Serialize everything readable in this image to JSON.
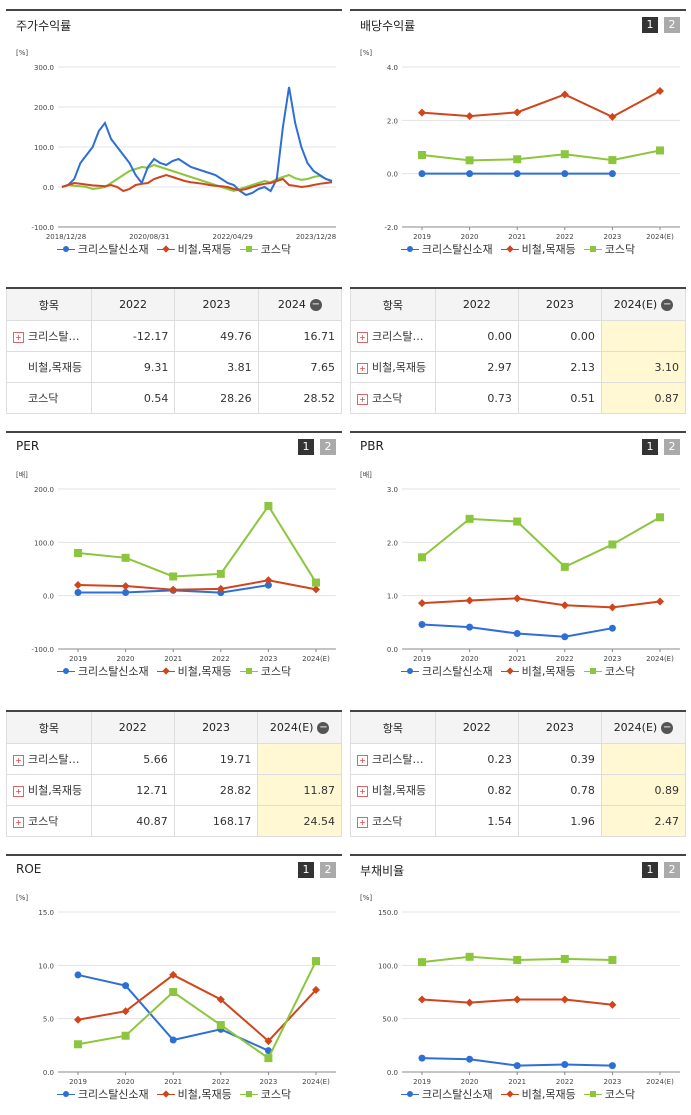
{
  "colors": {
    "s1": "#2e6fd6",
    "s2": "#d0451b",
    "s3": "#8cc63e"
  },
  "series_names": [
    "크리스탈신소재",
    "비철,목재등",
    "코스닥"
  ],
  "pager": [
    "1",
    "2"
  ],
  "stock": {
    "title": "주가수익률",
    "unit": "[%]",
    "chart_data": {
      "type": "line",
      "ylim": [
        -100,
        300
      ],
      "yticks": [
        "300.0",
        "200.0",
        "100.0",
        "0.0",
        "-100.0"
      ],
      "xticks": [
        "2018/12/28",
        "2020/08/31",
        "2022/04/29",
        "2023/12/28"
      ],
      "series": [
        {
          "name": "크리스탈신소재",
          "values": [
            0,
            5,
            20,
            60,
            80,
            100,
            140,
            160,
            120,
            100,
            80,
            60,
            30,
            10,
            50,
            70,
            60,
            55,
            65,
            70,
            60,
            50,
            45,
            40,
            35,
            30,
            20,
            10,
            5,
            -10,
            -20,
            -15,
            -5,
            0,
            -10,
            20,
            150,
            250,
            160,
            100,
            60,
            40,
            30,
            20,
            15
          ]
        },
        {
          "name": "비철,목재등",
          "values": [
            0,
            5,
            10,
            8,
            6,
            4,
            3,
            2,
            5,
            0,
            -10,
            -5,
            5,
            8,
            10,
            20,
            25,
            30,
            25,
            20,
            15,
            12,
            10,
            8,
            5,
            3,
            2,
            0,
            -5,
            -8,
            -5,
            0,
            5,
            8,
            10,
            15,
            20,
            5,
            3,
            0,
            2,
            5,
            8,
            10,
            12
          ]
        },
        {
          "name": "코스닥",
          "values": [
            0,
            5,
            3,
            2,
            0,
            -5,
            -3,
            0,
            10,
            20,
            30,
            40,
            45,
            50,
            48,
            55,
            50,
            45,
            40,
            35,
            30,
            25,
            20,
            15,
            10,
            5,
            0,
            -5,
            -10,
            -5,
            0,
            5,
            10,
            15,
            12,
            20,
            25,
            30,
            22,
            18,
            20,
            25,
            28,
            20,
            15
          ]
        }
      ]
    }
  },
  "stock_table": {
    "headers": [
      "항목",
      "2022",
      "2023",
      "2024"
    ],
    "rows": [
      {
        "label": "크리스탈…",
        "values": [
          "-12.17",
          "49.76",
          "16.71"
        ],
        "plus": true
      },
      {
        "label": "비철,목재등",
        "values": [
          "9.31",
          "3.81",
          "7.65"
        ],
        "plus": false
      },
      {
        "label": "코스닥",
        "values": [
          "0.54",
          "28.26",
          "28.52"
        ],
        "plus": false
      }
    ]
  },
  "dividend": {
    "title": "배당수익률",
    "unit": "[%]",
    "chart_data": {
      "type": "line",
      "ylim": [
        -2,
        4
      ],
      "yticks": [
        "4.0",
        "2.0",
        "0.0",
        "-2.0"
      ],
      "categories": [
        "2019",
        "2020",
        "2021",
        "2022",
        "2023",
        "2024(E)"
      ],
      "series": [
        {
          "name": "크리스탈신소재",
          "values": [
            0,
            0,
            0,
            0,
            0,
            null
          ]
        },
        {
          "name": "비철,목재등",
          "values": [
            2.29,
            2.16,
            2.3,
            2.97,
            2.13,
            3.1
          ]
        },
        {
          "name": "코스닥",
          "values": [
            0.7,
            0.5,
            0.54,
            0.73,
            0.51,
            0.87
          ]
        }
      ]
    }
  },
  "dividend_table": {
    "headers": [
      "항목",
      "2022",
      "2023",
      "2024(E)"
    ],
    "rows": [
      {
        "label": "크리스탈…",
        "values": [
          "0.00",
          "0.00",
          ""
        ],
        "plus": true
      },
      {
        "label": "비철,목재등",
        "values": [
          "2.97",
          "2.13",
          "3.10"
        ],
        "plus": true
      },
      {
        "label": "코스닥",
        "values": [
          "0.73",
          "0.51",
          "0.87"
        ],
        "plus": true
      }
    ]
  },
  "per": {
    "title": "PER",
    "unit": "[배]",
    "chart_data": {
      "type": "line",
      "ylim": [
        -100,
        200
      ],
      "yticks": [
        "200.0",
        "100.0",
        "0.0",
        "-100.0"
      ],
      "categories": [
        "2019",
        "2020",
        "2021",
        "2022",
        "2023",
        "2024(E)"
      ],
      "series": [
        {
          "name": "크리스탈신소재",
          "values": [
            6,
            6,
            10,
            5.66,
            19.71,
            null
          ]
        },
        {
          "name": "비철,목재등",
          "values": [
            20,
            18,
            11,
            12.71,
            28.82,
            11.87
          ]
        },
        {
          "name": "코스닥",
          "values": [
            80,
            71,
            36,
            40.87,
            168.17,
            24.54
          ]
        }
      ]
    }
  },
  "per_table": {
    "headers": [
      "항목",
      "2022",
      "2023",
      "2024(E)"
    ],
    "rows": [
      {
        "label": "크리스탈…",
        "values": [
          "5.66",
          "19.71",
          ""
        ],
        "plus": true
      },
      {
        "label": "비철,목재등",
        "values": [
          "12.71",
          "28.82",
          "11.87"
        ],
        "plus": true
      },
      {
        "label": "코스닥",
        "values": [
          "40.87",
          "168.17",
          "24.54"
        ],
        "plus": true
      }
    ]
  },
  "pbr": {
    "title": "PBR",
    "unit": "[배]",
    "chart_data": {
      "type": "line",
      "ylim": [
        0,
        3
      ],
      "yticks": [
        "3.0",
        "2.0",
        "1.0",
        "0.0"
      ],
      "categories": [
        "2019",
        "2020",
        "2021",
        "2022",
        "2023",
        "2024(E)"
      ],
      "series": [
        {
          "name": "크리스탈신소재",
          "values": [
            0.46,
            0.41,
            0.29,
            0.23,
            0.39,
            null
          ]
        },
        {
          "name": "비철,목재등",
          "values": [
            0.86,
            0.91,
            0.95,
            0.82,
            0.78,
            0.89
          ]
        },
        {
          "name": "코스닥",
          "values": [
            1.72,
            2.44,
            2.39,
            1.54,
            1.96,
            2.47
          ]
        }
      ]
    }
  },
  "pbr_table": {
    "headers": [
      "항목",
      "2022",
      "2023",
      "2024(E)"
    ],
    "rows": [
      {
        "label": "크리스탈…",
        "values": [
          "0.23",
          "0.39",
          ""
        ],
        "plus": true
      },
      {
        "label": "비철,목재등",
        "values": [
          "0.82",
          "0.78",
          "0.89"
        ],
        "plus": true
      },
      {
        "label": "코스닥",
        "values": [
          "1.54",
          "1.96",
          "2.47"
        ],
        "plus": true
      }
    ]
  },
  "roe": {
    "title": "ROE",
    "unit": "[%]",
    "chart_data": {
      "type": "line",
      "ylim": [
        0,
        15
      ],
      "yticks": [
        "15.0",
        "10.0",
        "5.0",
        "0.0"
      ],
      "categories": [
        "2019",
        "2020",
        "2021",
        "2022",
        "2023",
        "2024(E)"
      ],
      "series": [
        {
          "name": "크리스탈신소재",
          "values": [
            9.1,
            8.1,
            3.0,
            4.0,
            2.0,
            null
          ]
        },
        {
          "name": "비철,목재등",
          "values": [
            4.9,
            5.7,
            9.1,
            6.8,
            2.9,
            7.7
          ]
        },
        {
          "name": "코스닥",
          "values": [
            2.6,
            3.4,
            7.5,
            4.4,
            1.3,
            10.4
          ]
        }
      ]
    }
  },
  "debt": {
    "title": "부채비율",
    "unit": "[%]",
    "chart_data": {
      "type": "line",
      "ylim": [
        0,
        150
      ],
      "yticks": [
        "150.0",
        "100.0",
        "50.0",
        "0.0"
      ],
      "categories": [
        "2019",
        "2020",
        "2021",
        "2022",
        "2023",
        "2024(E)"
      ],
      "series": [
        {
          "name": "크리스탈신소재",
          "values": [
            13,
            12,
            6,
            7,
            6,
            null
          ]
        },
        {
          "name": "비철,목재등",
          "values": [
            68,
            65,
            68,
            68,
            63,
            null
          ]
        },
        {
          "name": "코스닥",
          "values": [
            103,
            108,
            105,
            106,
            105,
            null
          ]
        }
      ]
    }
  }
}
